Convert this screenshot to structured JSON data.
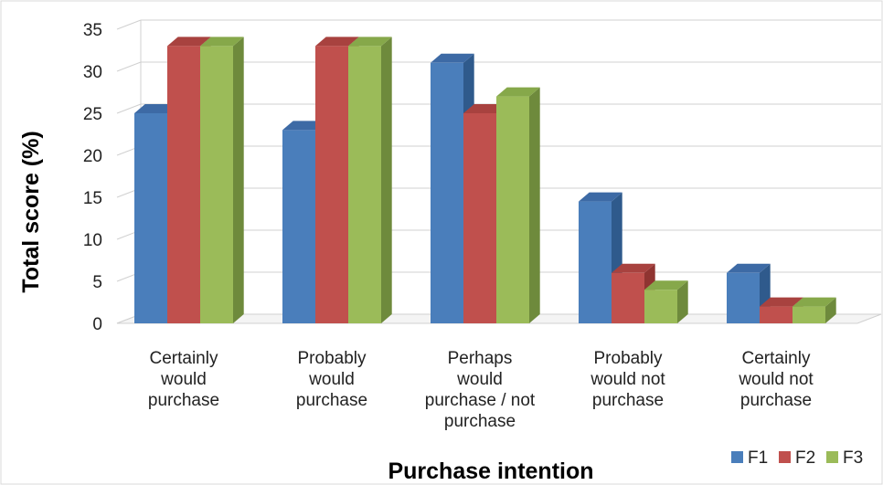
{
  "chart_data": {
    "type": "bar",
    "style": "3d-clustered-column",
    "title": "",
    "xlabel": "Purchase intention",
    "ylabel": "Total score (%)",
    "ylim": [
      0,
      35
    ],
    "yticks": [
      0,
      5,
      10,
      15,
      20,
      25,
      30,
      35
    ],
    "grid": true,
    "legend_position": "bottom-right",
    "categories": [
      "Certainly would purchase",
      "Probably would purchase",
      "Perhaps would purchase / not purchase",
      "Probably would not purchase",
      "Certainly would not purchase"
    ],
    "category_lines": [
      [
        "Certainly",
        "would",
        "purchase"
      ],
      [
        "Probably",
        "would",
        "purchase"
      ],
      [
        "Perhaps",
        "would",
        "purchase / not",
        "purchase"
      ],
      [
        "Probably",
        "would not",
        "purchase"
      ],
      [
        "Certainly",
        "would not",
        "purchase"
      ]
    ],
    "series": [
      {
        "name": "F1",
        "values": [
          25,
          23,
          31,
          14.5,
          6
        ],
        "color": "#4a7ebb",
        "side_color": "#2f5a8c",
        "top_color": "#3d6aa5"
      },
      {
        "name": "F2",
        "values": [
          33,
          33,
          25,
          6,
          2
        ],
        "color": "#c0504d",
        "side_color": "#8f3431",
        "top_color": "#a8423f"
      },
      {
        "name": "F3",
        "values": [
          33,
          33,
          27,
          4,
          2
        ],
        "color": "#9bbb59",
        "side_color": "#6e8a3c",
        "top_color": "#86a84a"
      }
    ]
  }
}
